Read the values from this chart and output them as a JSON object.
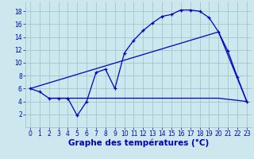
{
  "line1_x": [
    0,
    1,
    2,
    3,
    4,
    5,
    6,
    7,
    8,
    9,
    10,
    11,
    12,
    13,
    14,
    15,
    16,
    17,
    18,
    19,
    20,
    21,
    22,
    23
  ],
  "line1_y": [
    6,
    5.5,
    4.5,
    4.5,
    4.5,
    1.8,
    4.0,
    8.5,
    9.0,
    6.0,
    11.5,
    13.5,
    15.0,
    16.2,
    17.2,
    17.5,
    18.2,
    18.2,
    18.0,
    17.0,
    14.8,
    11.8,
    7.8,
    4.0
  ],
  "line2_x": [
    0,
    20,
    23
  ],
  "line2_y": [
    6,
    14.8,
    4.0
  ],
  "line3_x": [
    2,
    20,
    23
  ],
  "line3_y": [
    4.5,
    4.5,
    4.0
  ],
  "line_color": "#0000bb",
  "bg_color": "#cce8ee",
  "grid_color": "#9bbfc8",
  "xlabel": "Graphe des températures (°C)",
  "xlabel_color": "#0000bb",
  "xlabel_fontsize": 7.5,
  "tick_fontsize": 5.5,
  "xlim": [
    -0.5,
    23.5
  ],
  "ylim": [
    0,
    19.5
  ],
  "yticks": [
    2,
    4,
    6,
    8,
    10,
    12,
    14,
    16,
    18
  ],
  "xticks": [
    0,
    1,
    2,
    3,
    4,
    5,
    6,
    7,
    8,
    9,
    10,
    11,
    12,
    13,
    14,
    15,
    16,
    17,
    18,
    19,
    20,
    21,
    22,
    23
  ]
}
